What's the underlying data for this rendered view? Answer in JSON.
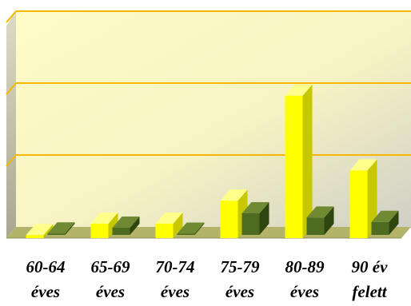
{
  "chart_data": {
    "type": "bar",
    "title": "",
    "xlabel": "",
    "ylabel": "",
    "categories": [
      [
        "60-64",
        "éves"
      ],
      [
        "65-69",
        "éves"
      ],
      [
        "70-74",
        "éves"
      ],
      [
        "75-79",
        "éves"
      ],
      [
        "80-89",
        "éves"
      ],
      [
        "90 év",
        "felett"
      ]
    ],
    "series": [
      {
        "values": [
          2,
          10,
          10,
          26,
          99,
          47
        ]
      },
      {
        "values": [
          1,
          5,
          0,
          15,
          12,
          9
        ]
      }
    ],
    "ylim": [
      0,
      150
    ],
    "y_gridlines": [
      50,
      100,
      150
    ],
    "y_tick_labels_shown": false,
    "grid": true,
    "legend": "none",
    "colors": {
      "series_front": [
        "#ffff00",
        "#4f6b1f"
      ],
      "series_top": [
        "#ffff8a",
        "#6f8a33"
      ],
      "series_side": [
        "#c8c800",
        "#2f4510"
      ],
      "plot_background": "#fffbc8",
      "gridline": "#f5b800",
      "floor": "#b3b36a",
      "left_wall": "#b9b9a5"
    }
  }
}
